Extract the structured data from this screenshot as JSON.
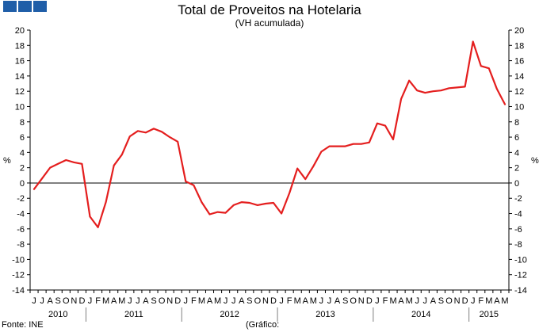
{
  "header": {
    "title": "Total de Proveitos na Hotelaria",
    "subtitle": "(VH acumulada)"
  },
  "footer": {
    "source": "Fonte: INE",
    "note": "(Gráfico:"
  },
  "colors": {
    "logo": "#1f5ea8",
    "series": "#e41e1e",
    "axis": "#000000",
    "separator": "#808080"
  },
  "chart_data": {
    "type": "line",
    "title": "Total de Proveitos na Hotelaria",
    "subtitle": "(VH acumulada)",
    "ylabel_left": "%",
    "ylabel_right": "%",
    "ylim": [
      -14,
      20
    ],
    "yticks": [
      -14,
      -12,
      -10,
      -8,
      -6,
      -4,
      -2,
      0,
      2,
      4,
      6,
      8,
      10,
      12,
      14,
      16,
      18,
      20
    ],
    "grid": false,
    "month_labels": [
      "J",
      "J",
      "A",
      "S",
      "O",
      "N",
      "D",
      "J",
      "F",
      "M",
      "A",
      "M",
      "J",
      "J",
      "A",
      "S",
      "O",
      "N",
      "D",
      "J",
      "F",
      "M",
      "A",
      "M",
      "J",
      "J",
      "A",
      "S",
      "O",
      "N",
      "D",
      "J",
      "F",
      "M",
      "A",
      "M",
      "J",
      "J",
      "A",
      "S",
      "O",
      "N",
      "D",
      "J",
      "F",
      "M",
      "A",
      "M",
      "J",
      "J",
      "A",
      "S",
      "O",
      "N",
      "D",
      "J",
      "F",
      "M",
      "A",
      "M"
    ],
    "years": [
      {
        "label": "2010",
        "start": 0,
        "count": 7
      },
      {
        "label": "2011",
        "start": 7,
        "count": 12
      },
      {
        "label": "2012",
        "start": 19,
        "count": 12
      },
      {
        "label": "2013",
        "start": 31,
        "count": 12
      },
      {
        "label": "2014",
        "start": 43,
        "count": 12
      },
      {
        "label": "2015",
        "start": 55,
        "count": 5
      }
    ],
    "series": [
      {
        "values": [
          -0.8,
          0.6,
          2.0,
          2.5,
          3.0,
          2.7,
          2.5,
          -4.4,
          -5.8,
          -2.5,
          2.3,
          3.7,
          6.1,
          6.8,
          6.6,
          7.1,
          6.7,
          6.0,
          5.4,
          0.2,
          -0.3,
          -2.5,
          -4.1,
          -3.8,
          -3.9,
          -2.9,
          -2.5,
          -2.6,
          -2.9,
          -2.7,
          -2.6,
          -4.0,
          -1.3,
          1.9,
          0.5,
          2.2,
          4.1,
          4.8,
          4.8,
          4.8,
          5.1,
          5.1,
          5.3,
          7.8,
          7.5,
          5.7,
          11.0,
          13.4,
          12.1,
          11.8,
          12.0,
          12.1,
          12.4,
          12.5,
          12.6,
          18.5,
          15.3,
          15.0,
          12.3,
          10.3
        ]
      }
    ]
  }
}
